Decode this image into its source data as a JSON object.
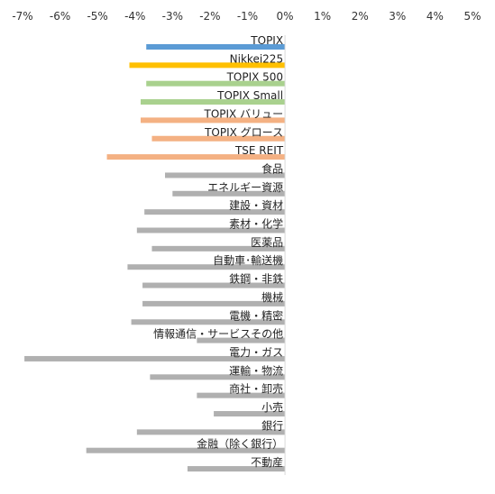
{
  "chart_data": {
    "type": "bar",
    "orientation": "horizontal",
    "xlim": [
      -7,
      5
    ],
    "x_ticks": [
      "-7%",
      "-6%",
      "-5%",
      "-4%",
      "-3%",
      "-2%",
      "-1%",
      "0%",
      "1%",
      "2%",
      "3%",
      "4%",
      "5%"
    ],
    "x_axis_position": "top",
    "grid": false,
    "categories": [
      "TOPIX",
      "Nikkei225",
      "TOPIX 500",
      "TOPIX Small",
      "TOPIX バリュー",
      "TOPIX グロース",
      "TSE REIT",
      "食品",
      "エネルギー資源",
      "建設・資材",
      "素材・化学",
      "医薬品",
      "自動車･輸送機",
      "鉄鋼・非鉄",
      "機械",
      "電機・精密",
      "情報通信・サービスその他",
      "電力・ガス",
      "運輸・物流",
      "商社・卸売",
      "小売",
      "銀行",
      "金融（除く銀行）",
      "不動産"
    ],
    "values": [
      -3.7,
      -4.15,
      -3.7,
      -3.85,
      -3.85,
      -3.55,
      -4.75,
      -3.2,
      -3.0,
      -3.75,
      -3.95,
      -3.55,
      -4.2,
      -3.8,
      -3.8,
      -4.1,
      -2.35,
      -6.95,
      -3.6,
      -2.35,
      -1.9,
      -3.95,
      -5.3,
      -2.6
    ],
    "colors": [
      "#5b9bd5",
      "#ffc000",
      "#a9d18e",
      "#a9d18e",
      "#f4b183",
      "#f4b183",
      "#f4b183",
      "#b0b0b0",
      "#b0b0b0",
      "#b0b0b0",
      "#b0b0b0",
      "#b0b0b0",
      "#b0b0b0",
      "#b0b0b0",
      "#b0b0b0",
      "#b0b0b0",
      "#b0b0b0",
      "#b0b0b0",
      "#b0b0b0",
      "#b0b0b0",
      "#b0b0b0",
      "#b0b0b0",
      "#b0b0b0",
      "#b0b0b0"
    ]
  }
}
